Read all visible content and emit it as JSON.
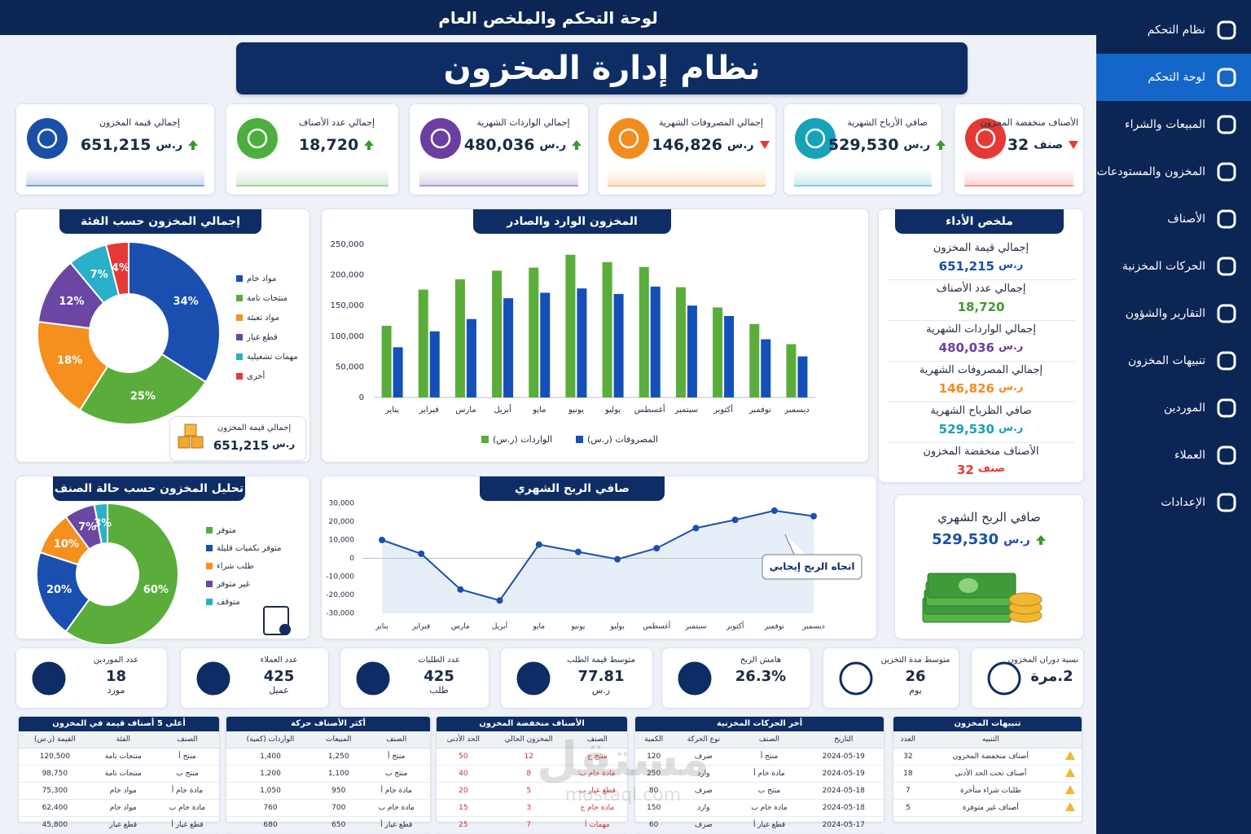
{
  "header": {
    "title": "لوحة التحكم والملخص العام",
    "system_title": "نظام إدارة المخزون"
  },
  "sidebar": {
    "items": [
      "نظام التحكم",
      "لوحة التحكم",
      "المبيعات والشراء",
      "المخزون والمستودعات",
      "الأصناف",
      "الحركات المخزنية",
      "التقارير والشؤون",
      "تنبيهات المخزون",
      "الموردين",
      "العملاء",
      "الإعدادات"
    ],
    "active": 1
  },
  "kpis": [
    {
      "label": "الأصناف منخفضة المخزون",
      "value": "32",
      "unit": "صنف",
      "trend": "down",
      "color": "#e53935"
    },
    {
      "label": "صافي الأرباح الشهرية",
      "value": "529,530",
      "unit": "ر.س",
      "trend": "up",
      "color": "#17a2b8"
    },
    {
      "label": "إجمالي المصروفات الشهرية",
      "value": "146,826",
      "unit": "ر.س",
      "trend": "down",
      "color": "#f28c1e"
    },
    {
      "label": "إجمالي الواردات الشهرية",
      "value": "480,036",
      "unit": "ر.س",
      "trend": "up",
      "color": "#6a3fa0"
    },
    {
      "label": "إجمالي عدد الأصناف",
      "value": "18,720",
      "trend": "up",
      "color": "#4caf3d"
    },
    {
      "label": "إجمالي قيمة المخزون",
      "value": "651,215",
      "unit": "ر.س",
      "trend": "up",
      "color": "#1a4fa8"
    }
  ],
  "chart_data": [
    {
      "type": "donut",
      "title": "إجمالي المخزون حسب الفئة",
      "categories": [
        "مواد خام",
        "منتجات تامة",
        "مواد تعبئة",
        "قطع غيار",
        "مهمات تشغيلية",
        "أخرى"
      ],
      "values": [
        34,
        25,
        18,
        12,
        7,
        4
      ],
      "value_labels": [
        "34%",
        "25%",
        "18%",
        "12%",
        "7%",
        "4%"
      ],
      "colors": [
        "#1a4fb0",
        "#5aad3a",
        "#f5901e",
        "#6b46a3",
        "#2ab0c8",
        "#e53935"
      ]
    },
    {
      "type": "bar",
      "title": "المخزون الوارد والصادر",
      "categories": [
        "يناير",
        "فبراير",
        "مارس",
        "أبريل",
        "مايو",
        "يونيو",
        "يوليو",
        "أغسطس",
        "سبتمبر",
        "أكتوبر",
        "نوفمبر",
        "ديسمبر"
      ],
      "series": [
        {
          "name": "الواردات (ر.س)",
          "color": "#5aad3a",
          "values": [
            117000,
            176000,
            193000,
            207000,
            212000,
            233000,
            221000,
            213000,
            180000,
            147000,
            120000,
            87000
          ]
        },
        {
          "name": "المصروفات (ر.س)",
          "color": "#1550b8",
          "values": [
            82000,
            108000,
            128000,
            162000,
            171000,
            178000,
            169000,
            181000,
            150000,
            133000,
            95000,
            67000
          ]
        }
      ],
      "ylim": [
        0,
        250000
      ],
      "yticks": [
        0,
        {
          "value": 50000,
          "label": "50,000"
        },
        {
          "value": 100000,
          "label": "100,000"
        },
        {
          "value": 150000,
          "label": "150,000"
        },
        {
          "value": 200000,
          "label": "200,000"
        },
        {
          "value": 250000,
          "label": "250,000"
        }
      ],
      "grid": false,
      "legend": "bottom"
    },
    {
      "type": "line",
      "title": "صافي الربح الشهري",
      "categories": [
        "يناير",
        "فبراير",
        "مارس",
        "أبريل",
        "مايو",
        "يونيو",
        "يوليو",
        "أغسطس",
        "سبتمبر",
        "أكتوبر",
        "نوفمبر",
        "ديسمبر"
      ],
      "values": [
        10000,
        2500,
        -17000,
        -23000,
        7500,
        3500,
        -500,
        5500,
        16500,
        21000,
        26000,
        23000
      ],
      "color": "#1a4fb0",
      "annotation": "اتجاه الربح إيجابي",
      "ylim": [
        -30000,
        30000
      ],
      "yticks": [
        {
          "value": -30000,
          "label": "-30,000"
        },
        {
          "value": -20000,
          "label": "-20,000"
        },
        {
          "value": -10000,
          "label": "-10,000"
        },
        0,
        {
          "value": 10000,
          "label": "10,000"
        },
        {
          "value": 20000,
          "label": "20,000"
        },
        {
          "value": 30000,
          "label": "30,000"
        }
      ],
      "grid": false
    },
    {
      "type": "donut",
      "title": "تحليل المخزون حسب حالة الصنف",
      "categories": [
        "متوفر",
        "متوفر بكميات قليلة",
        "طلب شراء",
        "غير متوفر",
        "متوقف"
      ],
      "values": [
        60,
        20,
        10,
        7,
        3
      ],
      "value_labels": [
        "60%",
        "20%",
        "10%",
        "7%",
        "3%"
      ],
      "colors": [
        "#5aad3a",
        "#1a4fb0",
        "#f5901e",
        "#6b46a3",
        "#2ab0c8"
      ]
    }
  ],
  "performance": {
    "title": "ملخص الأداء",
    "items": [
      {
        "label": "إجمالي قيمة المخزون",
        "value": "651,215",
        "unit": "ر.س",
        "color": "#1a4fa8"
      },
      {
        "label": "إجمالي عدد الأصناف",
        "value": "18,720",
        "color": "#3f9a2e"
      },
      {
        "label": "إجمالي الواردات الشهرية",
        "value": "480,036",
        "unit": "ر.س",
        "color": "#6a3fa0"
      },
      {
        "label": "إجمالي المصروفات الشهرية",
        "value": "146,826",
        "unit": "ر.س",
        "color": "#f28c1e"
      },
      {
        "label": "صافي الظرباح الشهرية",
        "value": "529,530",
        "unit": "ر.س",
        "color": "#1aa0b4"
      },
      {
        "label": "الأصناف منخفضة المخزون",
        "value": "32",
        "unit": "صنف",
        "color": "#e53935"
      }
    ]
  },
  "profit_card": {
    "title": "صافي الربح الشهري",
    "value": "529,530",
    "unit": "ر.س",
    "trend": "up"
  },
  "stats": [
    {
      "label": "نسبة دوران المخزون",
      "value": "2.مرة"
    },
    {
      "label": "متوسط مدة التخزين",
      "value": "26",
      "unit": "يوم"
    },
    {
      "label": "هامش الربح",
      "value": "26.3%"
    },
    {
      "label": "متوسط قيمة الطلب",
      "value": "77.81",
      "unit": "ر.س"
    },
    {
      "label": "عدد الطلبات",
      "value": "425",
      "unit": "طلب"
    },
    {
      "label": "عدد العملاء",
      "value": "425",
      "unit": "عميل"
    },
    {
      "label": "عدد الموردين",
      "value": "18",
      "unit": "مورد"
    }
  ],
  "tables": [
    {
      "title": "تنبيهات المخزون",
      "columns": [
        "التنبيه",
        "العدد"
      ],
      "row_icon": "warning",
      "rows": [
        [
          "أصناف منخفضة المخزون",
          "32"
        ],
        [
          "أصناف تحت الحد الأدنى",
          "18"
        ],
        [
          "طلبات شراء متأخرة",
          "7"
        ],
        [
          "أصناف غير متوفرة",
          "5"
        ]
      ]
    },
    {
      "title": "أخر الحركات المخزنية",
      "columns": [
        "التاريخ",
        "الصنف",
        "نوع الحركة",
        "الكمية"
      ],
      "rows": [
        [
          "2024-05-19",
          "منتج أ",
          "صرف",
          "120"
        ],
        [
          "2024-05-19",
          "مادة خام أ",
          "وارد",
          "250"
        ],
        [
          "2024-05-18",
          "منتج ب",
          "صرف",
          "80"
        ],
        [
          "2024-05-18",
          "مادة خام ب",
          "وارد",
          "150"
        ],
        [
          "2024-05-17",
          "قطع غيار أ",
          "صرف",
          "60"
        ]
      ]
    },
    {
      "title": "الأصناف منخفضة المخزون",
      "columns": [
        "الصنف",
        "المخزون الحالي",
        "الحد الأدنى"
      ],
      "color": "#d32f2f",
      "rows": [
        [
          "منتج ج",
          "12",
          "50"
        ],
        [
          "مادة خام ب",
          "8",
          "40"
        ],
        [
          "قطع غيار ب",
          "5",
          "20"
        ],
        [
          "مادة خام ج",
          "3",
          "15"
        ],
        [
          "مهمات أ",
          "7",
          "25"
        ]
      ]
    },
    {
      "title": "أكثر الأصناف حركة",
      "columns": [
        "الصنف",
        "المبيعات",
        "الواردات (كمية)"
      ],
      "rows": [
        [
          "منتج أ",
          "1,250",
          "1,400"
        ],
        [
          "منتج ب",
          "1,100",
          "1,200"
        ],
        [
          "مادة خام أ",
          "950",
          "1,050"
        ],
        [
          "مادة خام ب",
          "700",
          "760"
        ],
        [
          "قطع غيار أ",
          "650",
          "680"
        ]
      ]
    },
    {
      "title": "أعلى 5 أصناف قيمة في المخزون",
      "columns": [
        "الصنف",
        "الفئة",
        "القيمة (ر.س)"
      ],
      "rows": [
        [
          "منتج أ",
          "منتجات تامة",
          "120,500"
        ],
        [
          "منتج ب",
          "منتجات تامة",
          "98,750"
        ],
        [
          "مادة خام أ",
          "مواد خام",
          "75,300"
        ],
        [
          "مادة خام ب",
          "مواد خام",
          "62,400"
        ],
        [
          "قطع غيار أ",
          "قطع غيار",
          "45,800"
        ]
      ]
    }
  ],
  "watermark": {
    "text": "مستقل",
    "url": "mostaql.com"
  }
}
